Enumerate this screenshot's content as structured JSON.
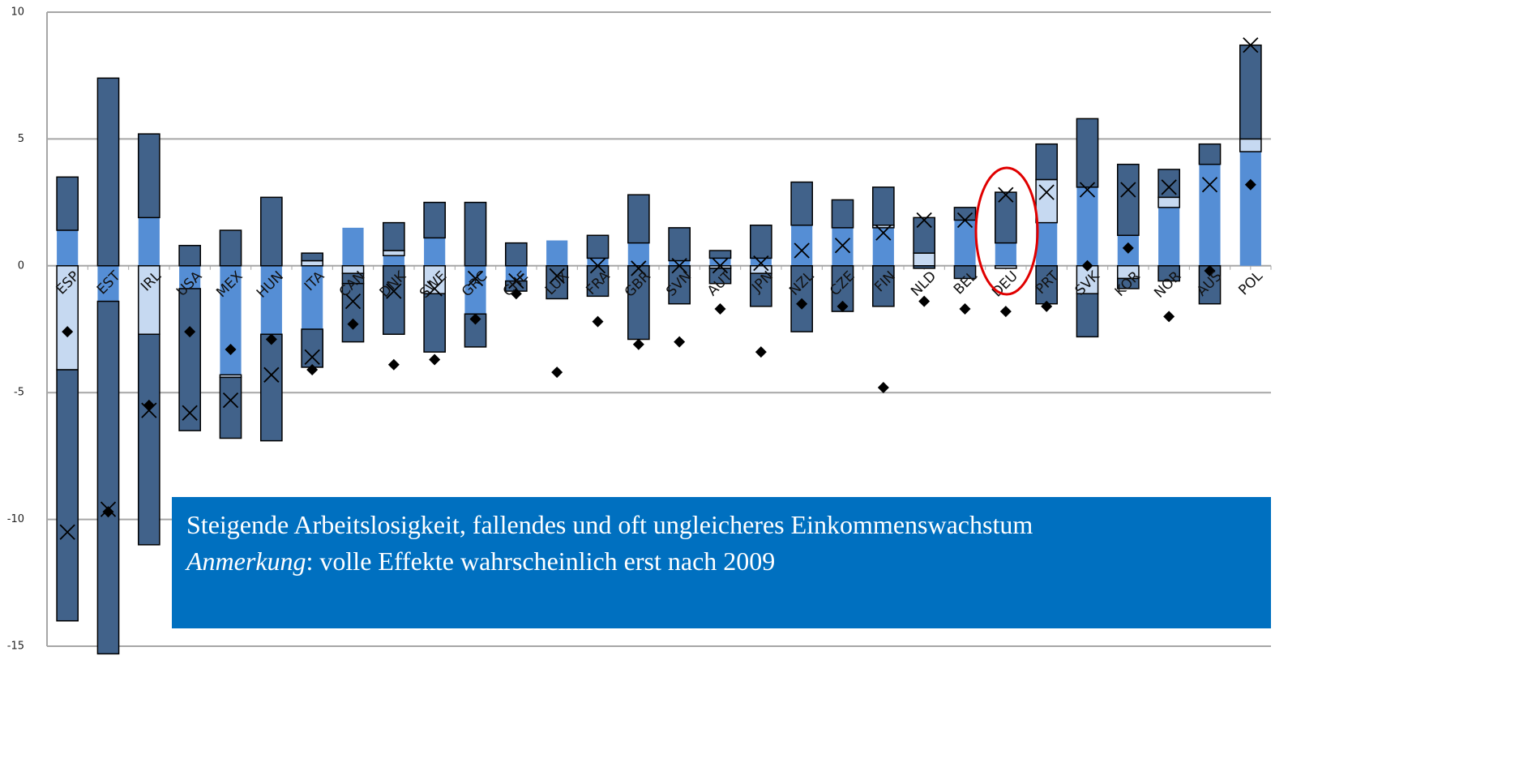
{
  "chart_data": {
    "type": "stacked_bar",
    "categories": [
      "ESP",
      "EST",
      "IRL",
      "USA",
      "MEX",
      "HUN",
      "ITA",
      "CAN",
      "DNK",
      "SWE",
      "GRC",
      "CHE",
      "LUX",
      "FRA",
      "GBR",
      "SVN",
      "AUT",
      "JPN",
      "NZL",
      "CZE",
      "FIN",
      "NLD",
      "BEL",
      "DEU",
      "PRT",
      "SVK",
      "KOR",
      "NOR",
      "AUS",
      "POL"
    ],
    "series": [
      {
        "color": "#558ed5",
        "outline": false,
        "values": [
          1.4,
          -1.4,
          1.9,
          -0.9,
          -4.3,
          -2.7,
          -2.5,
          1.5,
          0.4,
          1.1,
          -1.9,
          -0.6,
          1.0,
          0.3,
          0.9,
          0.2,
          0.3,
          0.3,
          1.6,
          1.5,
          1.5,
          0,
          1.8,
          0.9,
          1.7,
          3.1,
          1.2,
          2.3,
          4.0,
          4.5
        ]
      },
      {
        "color": "#c6d9f1",
        "outline": true,
        "values": [
          -4.1,
          0,
          -2.7,
          0,
          -0.1,
          0,
          0.2,
          -0.3,
          0.2,
          -1.1,
          0,
          0,
          0,
          0,
          0,
          0,
          -0.1,
          -0.3,
          0,
          0,
          0.1,
          0.5,
          0,
          -0.1,
          1.7,
          -1.1,
          -0.5,
          0.4,
          0,
          0.5
        ]
      },
      {
        "color": "#41628a",
        "outline": true,
        "values": [
          2.1,
          7.4,
          3.3,
          0.8,
          1.4,
          2.7,
          0.3,
          -0.4,
          1.1,
          1.4,
          2.5,
          0.9,
          0,
          0.9,
          1.9,
          1.3,
          0.3,
          1.3,
          1.7,
          1.1,
          1.5,
          1.4,
          0.5,
          2.0,
          1.4,
          2.7,
          2.8,
          1.1,
          0.8,
          3.7
        ]
      },
      {
        "color": "#41628a",
        "outline": true,
        "values": [
          -9.9,
          -13.9,
          -8.3,
          -5.6,
          -2.4,
          -4.2,
          -1.5,
          -2.3,
          -2.7,
          -2.3,
          -1.3,
          -0.4,
          -1.3,
          -1.2,
          -2.9,
          -1.5,
          -0.6,
          -1.3,
          -2.6,
          -1.8,
          -1.6,
          -0.1,
          -0.5,
          0,
          -1.5,
          -1.7,
          -0.4,
          -0.6,
          -1.5,
          0
        ]
      }
    ],
    "markers": [
      {
        "shape": "x",
        "color": "#000000",
        "values": [
          -10.5,
          -9.6,
          -5.7,
          -5.8,
          -5.3,
          -4.3,
          -3.6,
          -1.4,
          -1.0,
          -0.9,
          -0.5,
          -0.6,
          -0.4,
          0.0,
          -0.1,
          0.0,
          0.0,
          0.1,
          0.6,
          0.8,
          1.3,
          1.8,
          1.8,
          2.8,
          2.9,
          3.0,
          3.0,
          3.1,
          3.2,
          8.7
        ]
      },
      {
        "shape": "diamond",
        "color": "#000000",
        "values": [
          -2.6,
          -9.7,
          -5.5,
          -2.6,
          -3.3,
          -2.9,
          -4.1,
          -2.3,
          -3.9,
          -3.7,
          -2.1,
          -1.1,
          -4.2,
          -2.2,
          -3.1,
          -3.0,
          -1.7,
          -3.4,
          -1.5,
          -1.6,
          -4.8,
          -1.4,
          -1.7,
          -1.8,
          -1.6,
          0.0,
          0.7,
          -2.0,
          -0.2,
          3.2
        ]
      }
    ],
    "ylim": [
      -15,
      10
    ],
    "yticks": [
      -15,
      -10,
      -5,
      0,
      5,
      10
    ],
    "grid": true,
    "annotation": {
      "line1": "Steigende Arbeitslosigkeit, fallendes und oft ungleicheres Einkommenswachstum",
      "line2_emphasis": "Anmerkung",
      "line2_rest": ": volle Effekte wahrscheinlich erst nach 2009"
    }
  }
}
